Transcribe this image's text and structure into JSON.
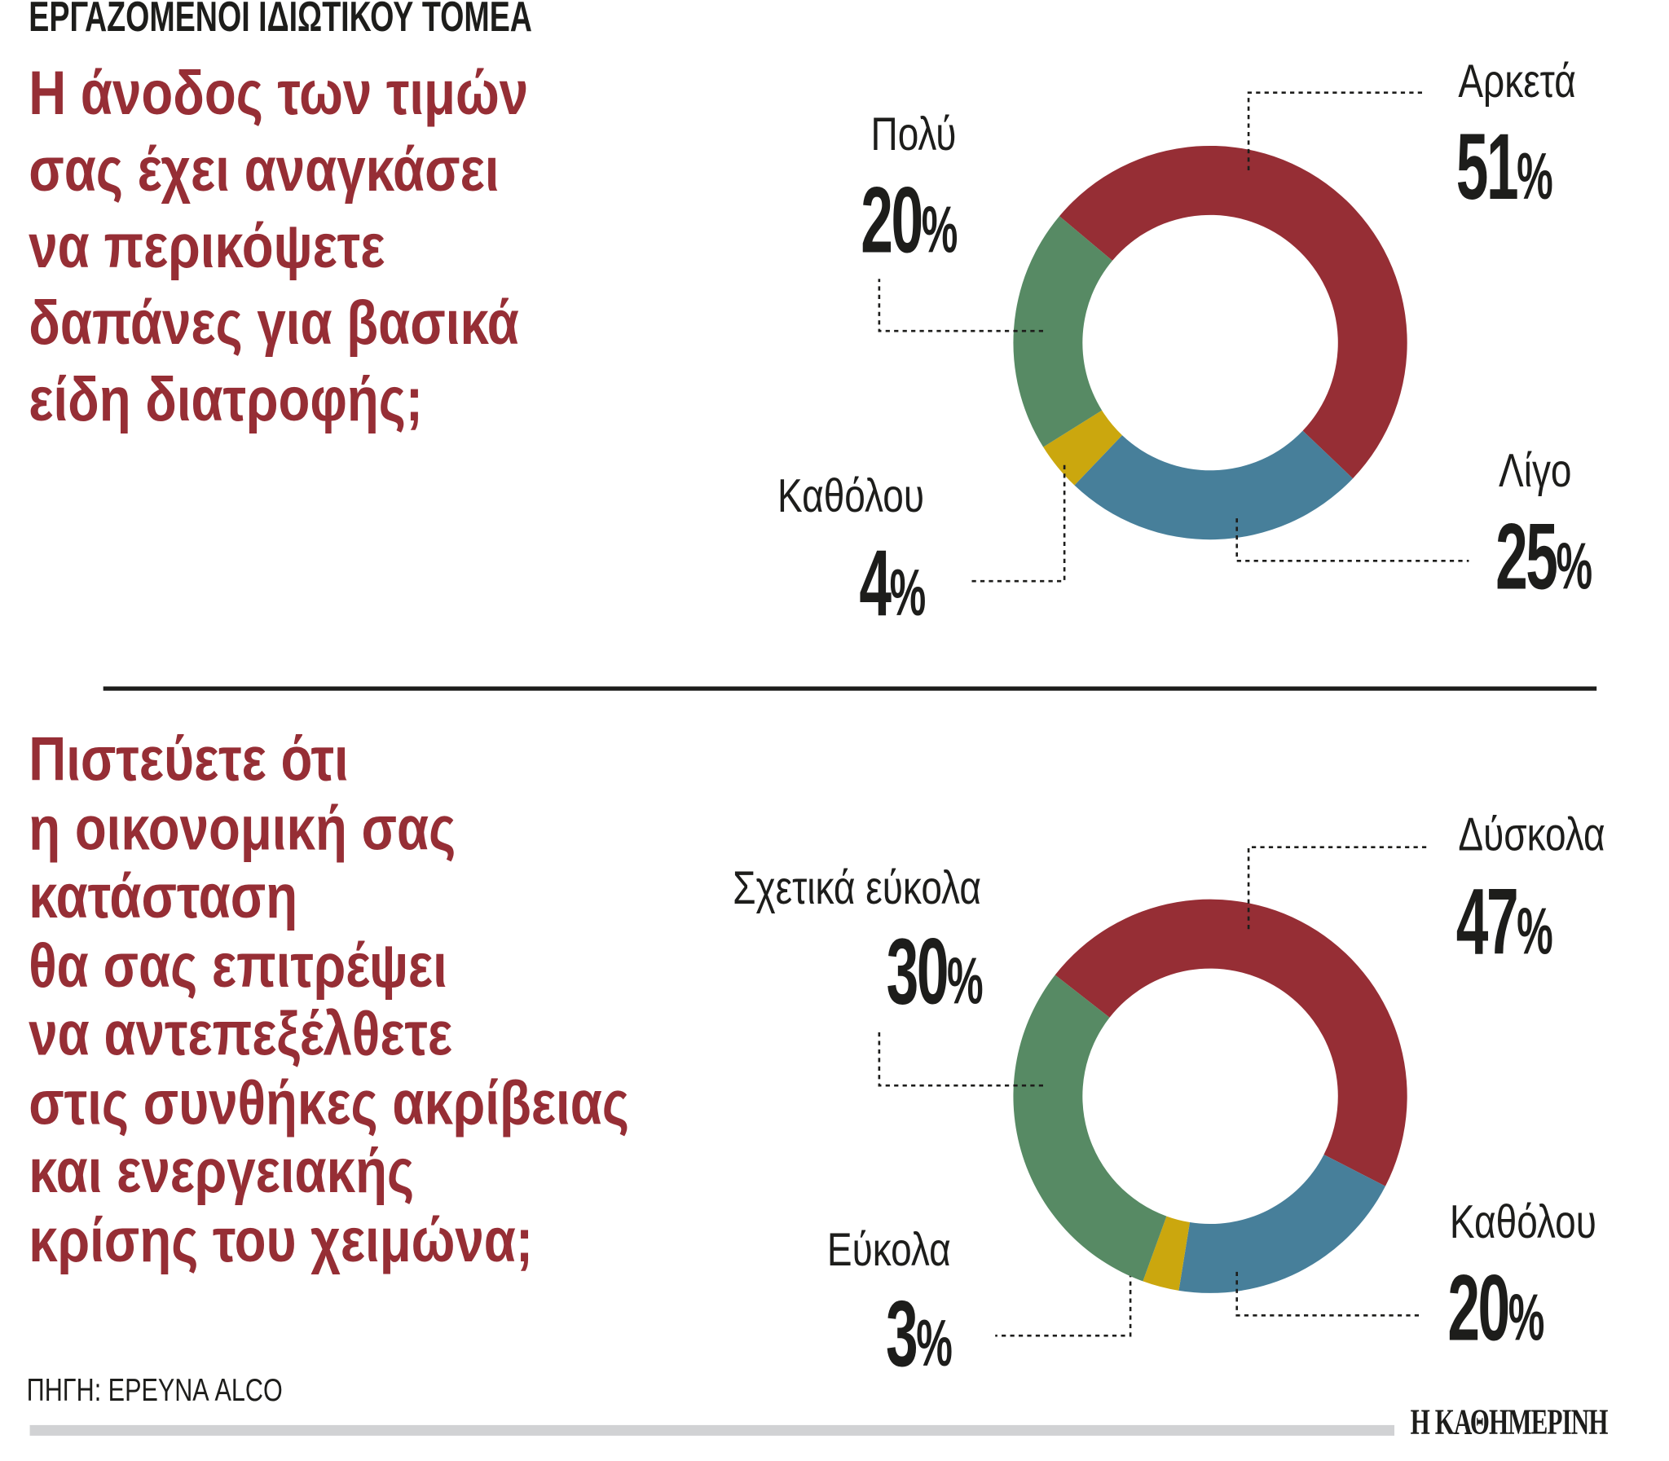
{
  "kicker": "ΕΡΓΑΖΟΜΕΝΟΙ ΙΔΙΩΤΙΚΟΥ ΤΟΜΕΑ",
  "questions": [
    {
      "lines": [
        "Η άνοδος των τιμών",
        "σας έχει αναγκάσει",
        "να περικόψετε",
        "δαπάνες για βασικά",
        "είδη διατροφής;"
      ]
    },
    {
      "lines": [
        "Πιστεύετε ότι",
        "η οικονομική σας",
        "κατάσταση",
        "θα σας επιτρέψει",
        "να αντεπεξέλθετε",
        "στις συνθήκες ακρίβειας",
        "και ενεργειακής",
        "κρίσης του χειμώνα;"
      ]
    }
  ],
  "chart_data": [
    {
      "type": "pie",
      "variant": "donut",
      "slices": [
        {
          "label": "Αρκετά",
          "value": 51,
          "display": "51",
          "color": "#962e35"
        },
        {
          "label": "Λίγο",
          "value": 25,
          "display": "25",
          "color": "#477f9a"
        },
        {
          "label": "Καθόλου",
          "value": 4,
          "display": "4",
          "color": "#cba70e"
        },
        {
          "label": "Πολύ",
          "value": 20,
          "display": "20",
          "color": "#578a64"
        }
      ]
    },
    {
      "type": "pie",
      "variant": "donut",
      "slices": [
        {
          "label": "Δύσκολα",
          "value": 47,
          "display": "47",
          "color": "#962e35"
        },
        {
          "label": "Καθόλου",
          "value": 20,
          "display": "20",
          "color": "#477f9a"
        },
        {
          "label": "Εύκολα",
          "value": 3,
          "display": "3",
          "color": "#cba70e"
        },
        {
          "label": "Σχετικά εύκολα",
          "value": 30,
          "display": "30",
          "color": "#578a64"
        }
      ]
    }
  ],
  "percent_sign": "%",
  "source": "ΠΗΓΗ:  ΕΡΕΥΝΑ ALCO",
  "logo_text": "Η ΚΑΘΗΜΕΡΙΝΗ"
}
